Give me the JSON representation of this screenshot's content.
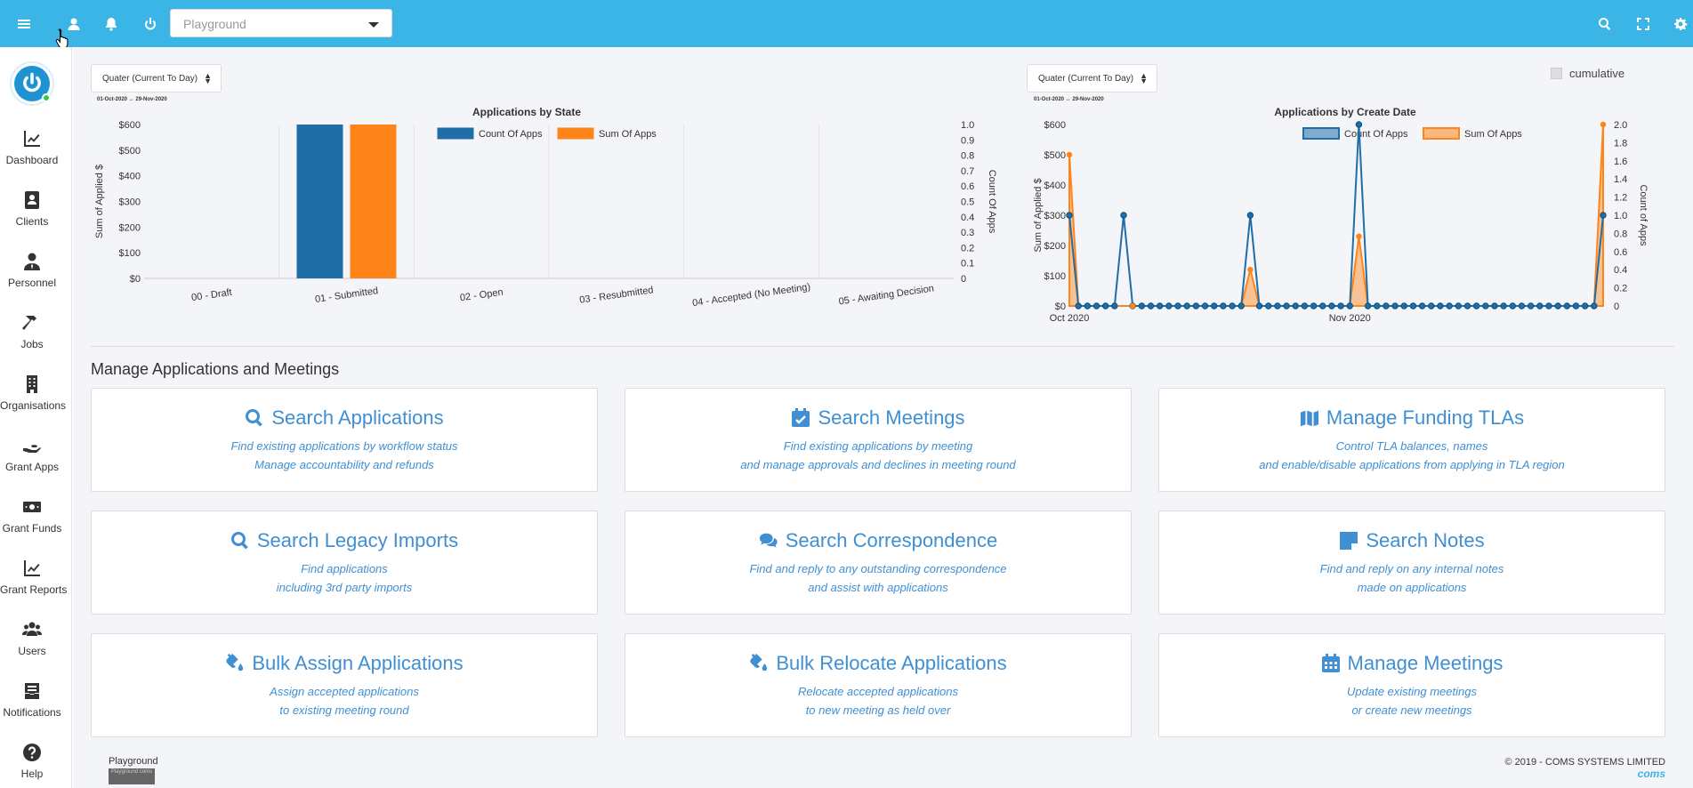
{
  "topbar": {
    "workspace_placeholder": "Playground",
    "icons": [
      "menu-icon",
      "user-icon",
      "bell-icon",
      "power-icon",
      "search-icon",
      "fullscreen-icon",
      "gear-icon"
    ]
  },
  "sidebar": {
    "items": [
      {
        "label": "Dashboard",
        "icon": "chart-icon"
      },
      {
        "label": "Clients",
        "icon": "contact-book-icon"
      },
      {
        "label": "Personnel",
        "icon": "person-tie-icon"
      },
      {
        "label": "Jobs",
        "icon": "hammer-icon"
      },
      {
        "label": "Organisations",
        "icon": "building-icon"
      },
      {
        "label": "Grant Apps",
        "icon": "hand-icon"
      },
      {
        "label": "Grant Funds",
        "icon": "money-icon"
      },
      {
        "label": "Grant Reports",
        "icon": "chart-line-icon"
      },
      {
        "label": "Users",
        "icon": "users-icon"
      },
      {
        "label": "Notifications",
        "icon": "inbox-icon"
      },
      {
        "label": "Help",
        "icon": "question-icon"
      }
    ]
  },
  "charts": {
    "left_range": "Quater (Current To Day)",
    "left_range_sub": "01-Oct-2020 ↔ 29-Nov-2020",
    "right_range": "Quater (Current To Day)",
    "right_range_sub": "01-Oct-2020 ↔ 29-Nov-2020",
    "cumulative_label": "cumulative"
  },
  "chart_data": [
    {
      "type": "bar",
      "title": "Applications by State",
      "categories": [
        "00 - Draft",
        "01 - Submitted",
        "02 - Open",
        "03 - Resubmitted",
        "04 - Accepted (No Meeting)",
        "05 - Awaiting Decision"
      ],
      "series": [
        {
          "name": "Count Of Apps",
          "axis": "right",
          "color": "#1f6ea8",
          "values": [
            0,
            1,
            0,
            0,
            0,
            0
          ]
        },
        {
          "name": "Sum Of Apps",
          "axis": "left",
          "color": "#ff8419",
          "values": [
            0,
            600,
            0,
            0,
            0,
            0
          ]
        }
      ],
      "ylabel": "Sum of Applied $",
      "y2label": "Count Of Apps",
      "ylim": [
        0,
        600
      ],
      "y2lim": [
        0,
        1
      ],
      "yticks": [
        "$0",
        "$100",
        "$200",
        "$300",
        "$400",
        "$500",
        "$600"
      ],
      "y2ticks": [
        "0",
        "0.1",
        "0.2",
        "0.3",
        "0.4",
        "0.5",
        "0.6",
        "0.7",
        "0.8",
        "0.9",
        "1.0"
      ],
      "legend": "top"
    },
    {
      "type": "line",
      "title": "Applications by Create Date",
      "x": [
        "2020-10-01",
        "2020-10-02",
        "2020-10-03",
        "2020-10-04",
        "2020-10-05",
        "2020-10-06",
        "2020-10-07",
        "2020-10-08",
        "2020-10-09",
        "2020-10-10",
        "2020-10-11",
        "2020-10-12",
        "2020-10-13",
        "2020-10-14",
        "2020-10-15",
        "2020-10-16",
        "2020-10-17",
        "2020-10-18",
        "2020-10-19",
        "2020-10-20",
        "2020-10-21",
        "2020-10-22",
        "2020-10-23",
        "2020-10-24",
        "2020-10-25",
        "2020-10-26",
        "2020-10-27",
        "2020-10-28",
        "2020-10-29",
        "2020-10-30",
        "2020-10-31",
        "2020-11-01",
        "2020-11-02",
        "2020-11-03",
        "2020-11-04",
        "2020-11-05",
        "2020-11-06",
        "2020-11-07",
        "2020-11-08",
        "2020-11-09",
        "2020-11-10",
        "2020-11-11",
        "2020-11-12",
        "2020-11-13",
        "2020-11-14",
        "2020-11-15",
        "2020-11-16",
        "2020-11-17",
        "2020-11-18",
        "2020-11-19",
        "2020-11-20",
        "2020-11-21",
        "2020-11-22",
        "2020-11-23",
        "2020-11-24",
        "2020-11-25",
        "2020-11-26",
        "2020-11-27",
        "2020-11-28",
        "2020-11-29"
      ],
      "series": [
        {
          "name": "Count Of Apps",
          "axis": "right",
          "color": "#1f6ea8",
          "values": [
            1,
            0,
            0,
            0,
            0,
            0,
            1,
            0,
            0,
            0,
            0,
            0,
            0,
            0,
            0,
            0,
            0,
            0,
            0,
            0,
            1,
            0,
            0,
            0,
            0,
            0,
            0,
            0,
            0,
            0,
            0,
            0,
            2,
            0,
            0,
            0,
            0,
            0,
            0,
            0,
            0,
            0,
            0,
            0,
            0,
            0,
            0,
            0,
            0,
            0,
            0,
            0,
            0,
            0,
            0,
            0,
            0,
            0,
            0,
            1
          ]
        },
        {
          "name": "Sum Of Apps",
          "axis": "left",
          "color": "#ff8419",
          "values": [
            500,
            0,
            0,
            0,
            0,
            0,
            0,
            0,
            0,
            0,
            0,
            0,
            0,
            0,
            0,
            0,
            0,
            0,
            0,
            0,
            120,
            0,
            0,
            0,
            0,
            0,
            0,
            0,
            0,
            0,
            0,
            0,
            230,
            0,
            0,
            0,
            0,
            0,
            0,
            0,
            0,
            0,
            0,
            0,
            0,
            0,
            0,
            0,
            0,
            0,
            0,
            0,
            0,
            0,
            0,
            0,
            0,
            0,
            0,
            600
          ]
        }
      ],
      "xticks": [
        "Oct 2020",
        "Nov 2020"
      ],
      "ylabel": "Sum of Applied $",
      "y2label": "Count of Apps",
      "ylim": [
        0,
        600
      ],
      "y2lim": [
        0,
        2
      ],
      "yticks": [
        "$0",
        "$100",
        "$200",
        "$300",
        "$400",
        "$500",
        "$600"
      ],
      "y2ticks": [
        "0",
        "0.2",
        "0.4",
        "0.6",
        "0.8",
        "1.0",
        "1.2",
        "1.4",
        "1.6",
        "1.8",
        "2.0"
      ],
      "legend": "top"
    }
  ],
  "section": {
    "title": "Manage Applications and Meetings"
  },
  "cards": [
    {
      "title": "Search Applications",
      "icon": "search-icon",
      "line1": "Find existing applications by workflow status",
      "line2": "Manage accountability and refunds"
    },
    {
      "title": "Search Meetings",
      "icon": "calendar-check-icon",
      "line1": "Find existing applications by meeting",
      "line2": "and manage approvals and declines in meeting round"
    },
    {
      "title": "Manage Funding TLAs",
      "icon": "map-icon",
      "line1": "Control TLA balances, names",
      "line2": "and enable/disable applications from applying in TLA region"
    },
    {
      "title": "Search Legacy Imports",
      "icon": "search-icon",
      "line1": "Find applications",
      "line2": "including 3rd party imports"
    },
    {
      "title": "Search Correspondence",
      "icon": "comments-icon",
      "line1": "Find and reply to any outstanding correspondence",
      "line2": "and assist with applications"
    },
    {
      "title": "Search Notes",
      "icon": "sticky-note-icon",
      "line1": "Find and reply on any internal notes",
      "line2": "made on applications"
    },
    {
      "title": "Bulk Assign Applications",
      "icon": "fill-drip-icon",
      "line1": "Assign accepted applications",
      "line2": "to existing meeting round"
    },
    {
      "title": "Bulk Relocate Applications",
      "icon": "fill-drip-icon",
      "line1": "Relocate accepted applications",
      "line2": "to new meeting as held over"
    },
    {
      "title": "Manage Meetings",
      "icon": "calendar-icon",
      "line1": "Update existing meetings",
      "line2": "or create new meetings"
    }
  ],
  "footer": {
    "left_label": "Playground",
    "thumb_text": "Playground coms",
    "copyright": "© 2019 - COMS SYSTEMS LIMITED",
    "brand": "coms"
  }
}
